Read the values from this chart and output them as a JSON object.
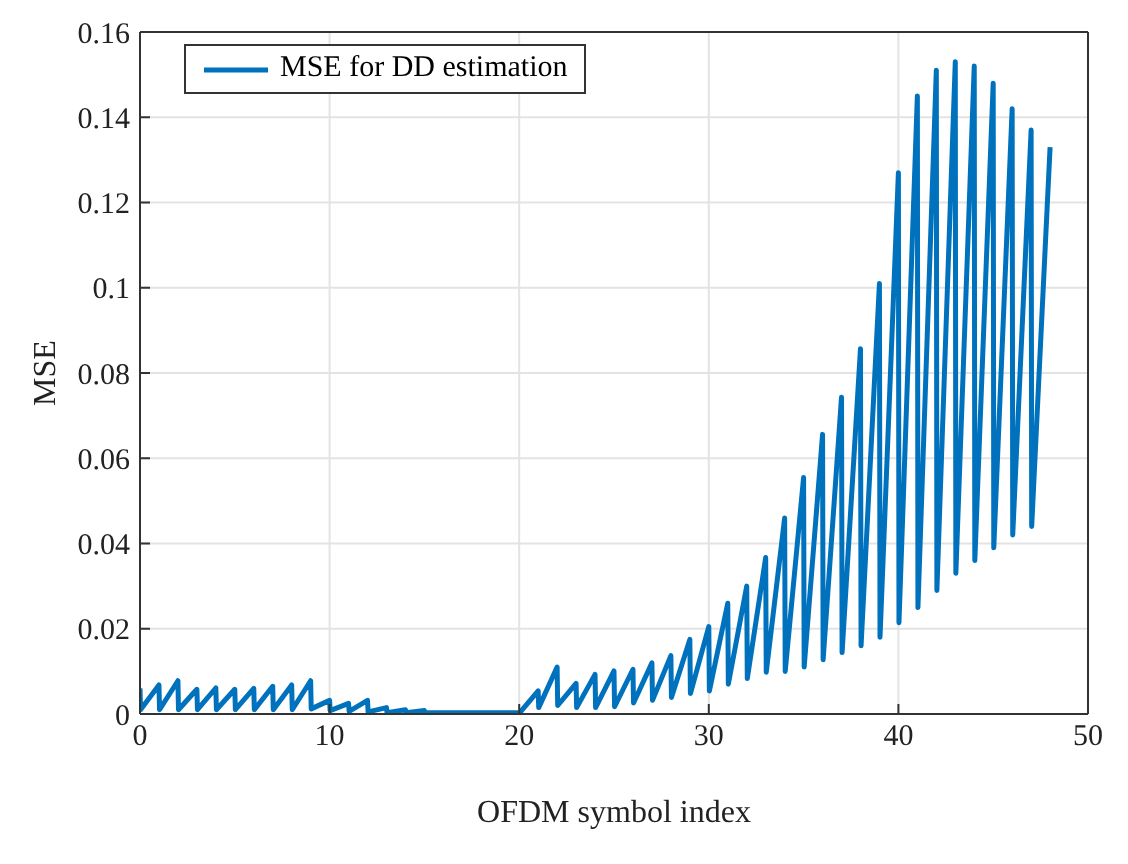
{
  "chart_data": {
    "type": "line",
    "xlabel": "OFDM symbol index",
    "ylabel": "MSE",
    "xlim": [
      0,
      50
    ],
    "xticks": [
      0,
      10,
      20,
      30,
      40,
      50
    ],
    "ylim": [
      0,
      0.16
    ],
    "yticks": [
      0,
      0.02,
      0.04,
      0.06,
      0.08,
      0.1,
      0.12,
      0.14,
      0.16
    ],
    "grid": true,
    "legend": "top left",
    "marker": "none",
    "line_style": "solid",
    "series": [
      {
        "name": "MSE for DD estimation",
        "color": "#0072bd",
        "x": [
          0,
          0.03,
          1,
          1.03,
          2,
          2.03,
          3,
          3.03,
          4,
          4.03,
          5,
          5.03,
          6,
          6.03,
          7,
          7.03,
          8,
          8.03,
          9,
          9.03,
          10,
          10.03,
          11,
          11.03,
          12,
          12.03,
          13,
          13.03,
          14,
          14.03,
          15,
          15.03,
          16,
          16.03,
          17,
          17.03,
          18,
          18.03,
          19,
          19.03,
          20,
          20.03,
          21,
          21.03,
          22,
          22.03,
          23,
          23.03,
          24,
          24.03,
          25,
          25.03,
          26,
          26.03,
          27,
          27.03,
          28,
          28.03,
          29,
          29.03,
          30,
          30.03,
          31,
          31.03,
          32,
          32.03,
          33,
          33.03,
          34,
          34.03,
          35,
          35.03,
          36,
          36.03,
          37,
          37.03,
          38,
          38.03,
          39,
          39.03,
          40,
          40.03,
          41,
          41.03,
          42,
          42.03,
          43,
          43.03,
          44,
          44.03,
          45,
          45.03,
          46,
          46.03,
          47,
          47.03,
          48
        ],
        "values": [
          0.006,
          0.001,
          0.0068,
          0.001,
          0.0078,
          0.001,
          0.0058,
          0.001,
          0.0061,
          0.001,
          0.0058,
          0.001,
          0.006,
          0.001,
          0.0065,
          0.001,
          0.0068,
          0.001,
          0.0078,
          0.0012,
          0.0032,
          0.0008,
          0.0025,
          0.0006,
          0.0032,
          0.0005,
          0.0015,
          0.0003,
          0.001,
          0.0003,
          0.0008,
          0.0003,
          0.0003,
          0.0003,
          0.0003,
          0.0003,
          0.0003,
          0.0003,
          0.0003,
          0.0003,
          0.0003,
          0.0003,
          0.0054,
          0.0015,
          0.011,
          0.002,
          0.0072,
          0.0015,
          0.0093,
          0.0015,
          0.0101,
          0.0017,
          0.0105,
          0.0026,
          0.012,
          0.0032,
          0.0137,
          0.0039,
          0.0175,
          0.0048,
          0.0205,
          0.0054,
          0.026,
          0.007,
          0.03,
          0.0083,
          0.0367,
          0.0098,
          0.046,
          0.01,
          0.0555,
          0.011,
          0.0656,
          0.0127,
          0.0743,
          0.0144,
          0.0857,
          0.016,
          0.101,
          0.018,
          0.127,
          0.0214,
          0.145,
          0.025,
          0.151,
          0.029,
          0.153,
          0.033,
          0.152,
          0.036,
          0.148,
          0.039,
          0.142,
          0.042,
          0.137,
          0.044,
          0.133
        ]
      }
    ]
  }
}
